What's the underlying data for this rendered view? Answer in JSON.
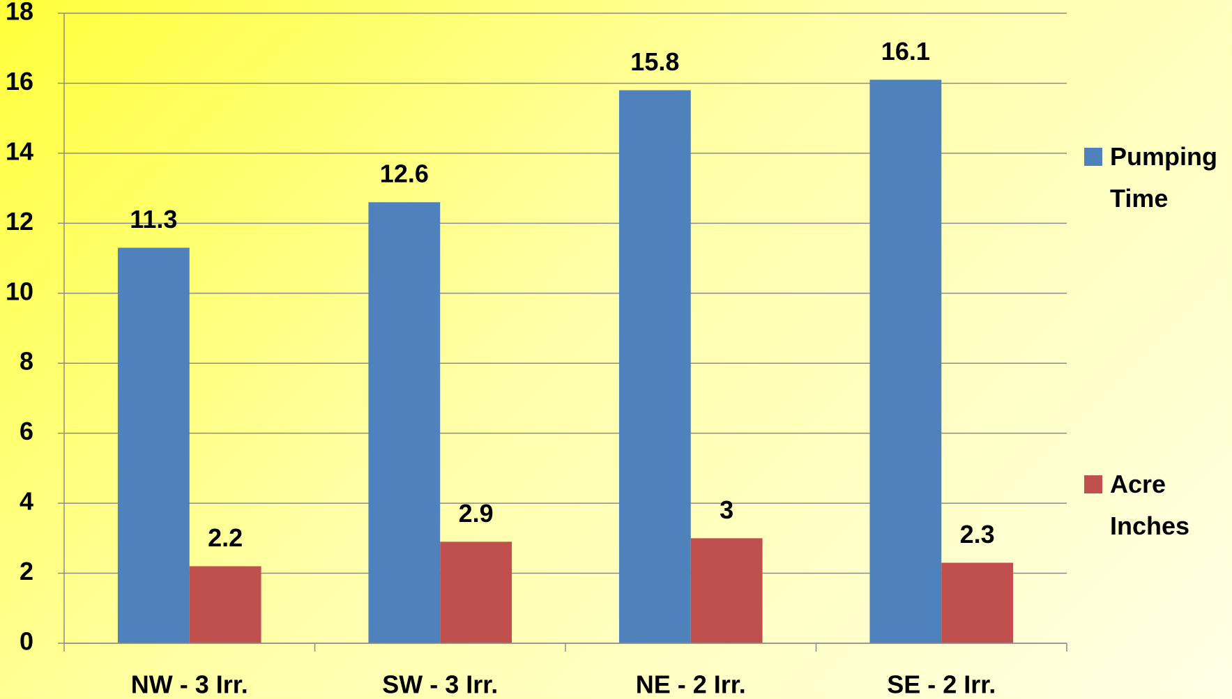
{
  "chart_data": {
    "type": "bar",
    "categories": [
      "NW - 3 Irr.",
      "SW - 3 Irr.",
      "NE - 2 Irr.",
      "SE - 2 Irr."
    ],
    "series": [
      {
        "name": "Pumping Time",
        "color": "#4f81bd",
        "values": [
          11.3,
          12.6,
          15.8,
          16.1
        ]
      },
      {
        "name": "Acre Inches",
        "color": "#c0504d",
        "values": [
          2.2,
          2.9,
          3,
          2.3
        ]
      }
    ],
    "ylim": [
      0,
      18
    ],
    "yticks": [
      0,
      2,
      4,
      6,
      8,
      10,
      12,
      14,
      16,
      18
    ],
    "grid": true,
    "legend": "right"
  }
}
